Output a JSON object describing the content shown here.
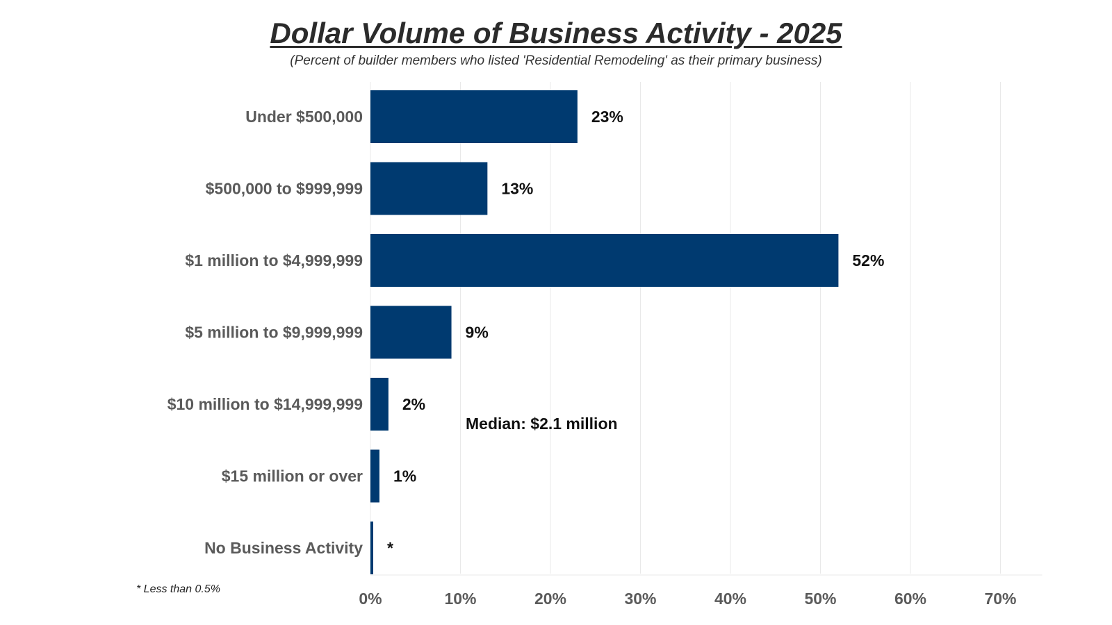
{
  "title": "Dollar Volume of Business Activity - 2025",
  "subtitle": "(Percent of builder members who listed 'Residential Remodeling' as their primary business)",
  "annotation": "Median: $2.1 million",
  "footnote": "* Less than 0.5%",
  "colors": {
    "bar": "#003a70",
    "grid": "#e9e9e9",
    "category_text": "#5a5a5a",
    "value_text": "#111111"
  },
  "chart_data": {
    "type": "bar",
    "orientation": "horizontal",
    "categories": [
      "Under $500,000",
      "$500,000 to $999,999",
      "$1 million to $4,999,999",
      "$5 million to $9,999,999",
      "$10 million to $14,999,999",
      "$15 million or over",
      "No Business Activity"
    ],
    "values": [
      23,
      13,
      52,
      9,
      2,
      1,
      0.3
    ],
    "value_labels": [
      "23%",
      "13%",
      "52%",
      "9%",
      "2%",
      "1%",
      "*"
    ],
    "xlim": [
      0,
      70
    ],
    "x_ticks": [
      "0%",
      "10%",
      "20%",
      "30%",
      "40%",
      "50%",
      "60%",
      "70%"
    ],
    "grid": "vertical",
    "legend": "none"
  }
}
